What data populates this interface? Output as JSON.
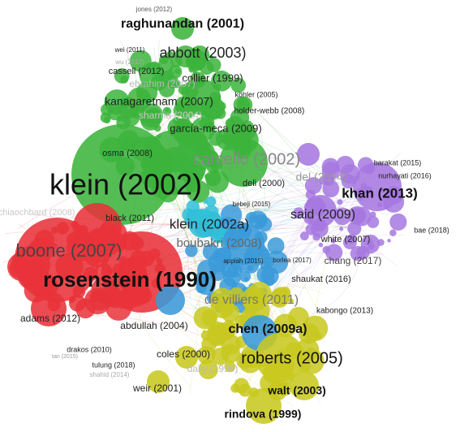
{
  "nodes": [
    {
      "label": "jones (2012)"
    },
    {
      "label": "raghunandan (2001)"
    },
    {
      "label": "wei (2011)"
    },
    {
      "label": "abbott (2003)"
    },
    {
      "label": "wu (2012)"
    },
    {
      "label": "cassell (2012)"
    },
    {
      "label": "collier (1999)"
    },
    {
      "label": "ebrahim (2007)"
    },
    {
      "label": "kanagaretnam (2007)"
    },
    {
      "label": "köhler (2005)"
    },
    {
      "label": "holder-webb (2008)"
    },
    {
      "label": "sharma (2004)"
    },
    {
      "label": "garcía-meca (2009)"
    },
    {
      "label": "osma (2008)"
    },
    {
      "label": "carcello (2002)"
    },
    {
      "label": "barakat (2015)"
    },
    {
      "label": "nurhayati (2016)"
    },
    {
      "label": "del (2014)"
    },
    {
      "label": "deli (2000)"
    },
    {
      "label": "klein (2002)"
    },
    {
      "label": "khan (2013)"
    },
    {
      "label": "bebeji (2015)"
    },
    {
      "label": "chiaochbard (2008)"
    },
    {
      "label": "black (2011)"
    },
    {
      "label": "klein (2002a)"
    },
    {
      "label": "said (2009)"
    },
    {
      "label": "bae (2018)"
    },
    {
      "label": "boone (2007)"
    },
    {
      "label": "boubakri (2008)"
    },
    {
      "label": "white (2007)"
    },
    {
      "label": "appiah (2015)"
    },
    {
      "label": "borlea (2017)"
    },
    {
      "label": "chang (2017)"
    },
    {
      "label": "rosenstein (1990)"
    },
    {
      "label": "shaukat (2016)"
    },
    {
      "label": "de villiers (2011)"
    },
    {
      "label": "kabongo (2013)"
    },
    {
      "label": "adams (2012)"
    },
    {
      "label": "abdullah (2004)"
    },
    {
      "label": "chen (2009a)"
    },
    {
      "label": "coles (2000)"
    },
    {
      "label": "roberts (2005)"
    },
    {
      "label": "drakos (2010)"
    },
    {
      "label": "tan (2015)"
    },
    {
      "label": "tulung (2018)"
    },
    {
      "label": "shahid (2014)"
    },
    {
      "label": "daily (1999)"
    },
    {
      "label": "weir (2001)"
    },
    {
      "label": "walt (2003)"
    },
    {
      "label": "rindova (1999)"
    }
  ]
}
